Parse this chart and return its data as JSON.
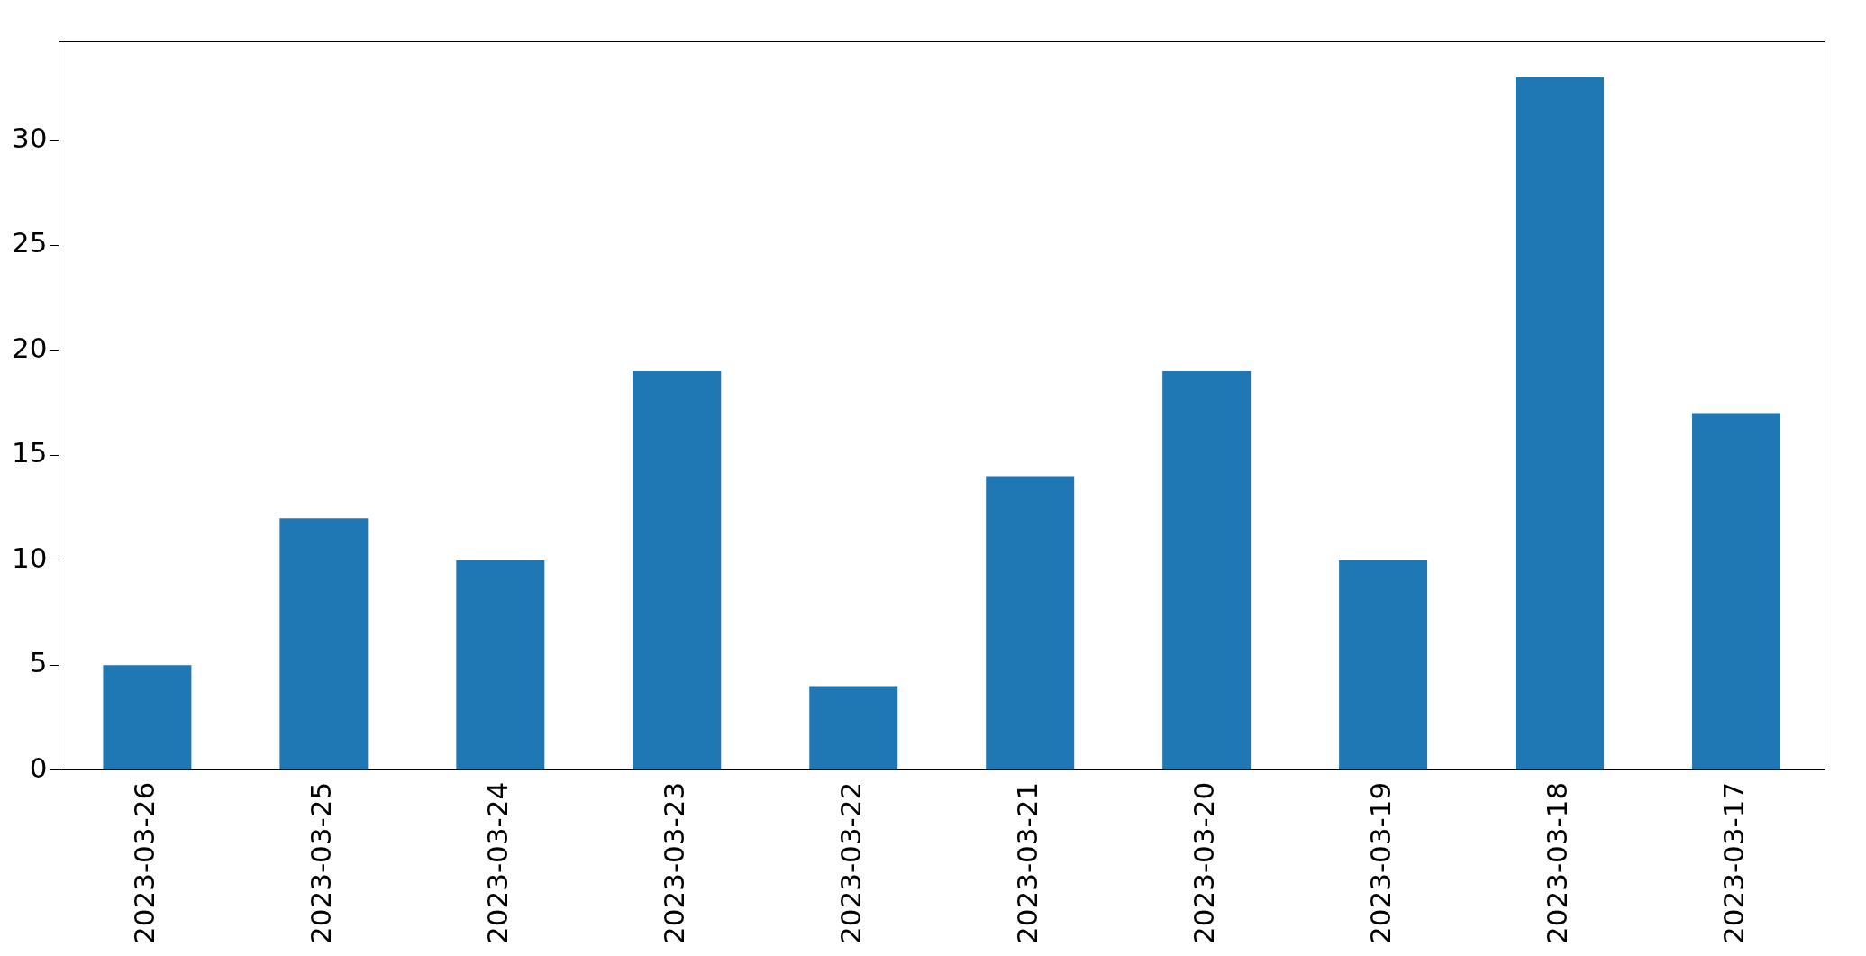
{
  "chart_data": {
    "type": "bar",
    "categories": [
      "2023-03-26",
      "2023-03-25",
      "2023-03-24",
      "2023-03-23",
      "2023-03-22",
      "2023-03-21",
      "2023-03-20",
      "2023-03-19",
      "2023-03-18",
      "2023-03-17"
    ],
    "values": [
      5,
      12,
      10,
      19,
      4,
      14,
      19,
      10,
      33,
      17
    ],
    "color": "#1f77b4",
    "ylim": [
      0,
      34.7
    ],
    "yticks": [
      0,
      5,
      10,
      15,
      20,
      25,
      30
    ],
    "grid": false,
    "legend": false
  }
}
